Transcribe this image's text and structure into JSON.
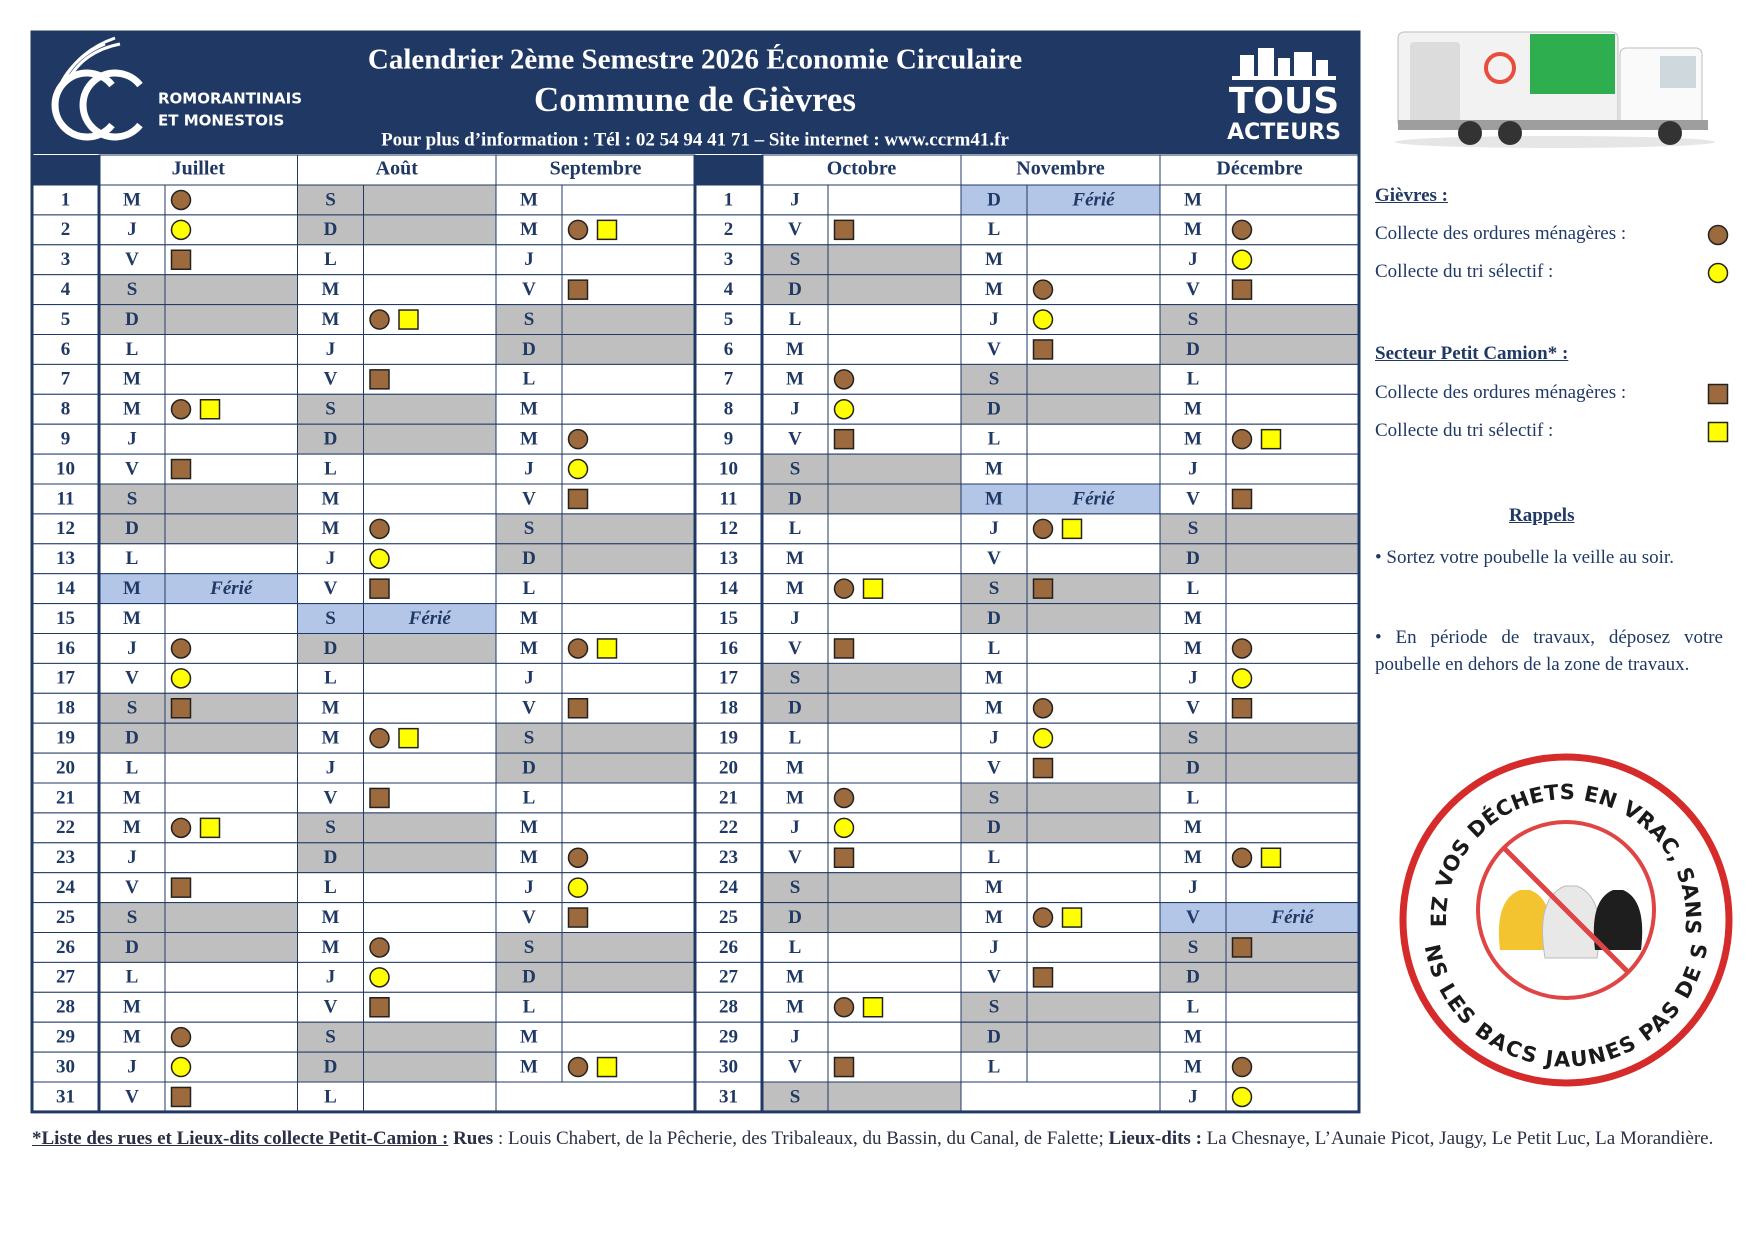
{
  "header": {
    "title": "Calendrier 2ème Semestre 2026 Économie Circulaire",
    "commune": "Commune de Gièvres",
    "info": "Pour plus d’information : Tél : 02 54 94 41 71 – Site internet : www.ccrm41.fr",
    "logo_left": [
      "ROMORANTINAIS",
      "ET MONESTOIS"
    ],
    "logo_right": [
      "TOUS",
      "ACTEURS"
    ]
  },
  "calendar": {
    "day_numbers": [
      1,
      2,
      3,
      4,
      5,
      6,
      7,
      8,
      9,
      10,
      11,
      12,
      13,
      14,
      15,
      16,
      17,
      18,
      19,
      20,
      21,
      22,
      23,
      24,
      25,
      26,
      27,
      28,
      29,
      30,
      31
    ],
    "months": [
      {
        "name": "Juillet",
        "days": [
          {
            "w": "M",
            "c": [
              "brown-circle"
            ]
          },
          {
            "w": "J",
            "c": [
              "yellow-circle"
            ]
          },
          {
            "w": "V",
            "c": [
              "brown-square"
            ]
          },
          {
            "w": "S"
          },
          {
            "w": "D"
          },
          {
            "w": "L"
          },
          {
            "w": "M"
          },
          {
            "w": "M",
            "c": [
              "brown-circle",
              "yellow-square"
            ]
          },
          {
            "w": "J"
          },
          {
            "w": "V",
            "c": [
              "brown-square"
            ]
          },
          {
            "w": "S"
          },
          {
            "w": "D"
          },
          {
            "w": "L"
          },
          {
            "w": "M",
            "note": "Férié"
          },
          {
            "w": "M"
          },
          {
            "w": "J",
            "c": [
              "brown-circle"
            ]
          },
          {
            "w": "V",
            "c": [
              "yellow-circle"
            ]
          },
          {
            "w": "S",
            "c": [
              "brown-square"
            ]
          },
          {
            "w": "D"
          },
          {
            "w": "L"
          },
          {
            "w": "M"
          },
          {
            "w": "M",
            "c": [
              "brown-circle",
              "yellow-square"
            ]
          },
          {
            "w": "J"
          },
          {
            "w": "V",
            "c": [
              "brown-square"
            ]
          },
          {
            "w": "S"
          },
          {
            "w": "D"
          },
          {
            "w": "L"
          },
          {
            "w": "M"
          },
          {
            "w": "M",
            "c": [
              "brown-circle"
            ]
          },
          {
            "w": "J",
            "c": [
              "yellow-circle"
            ]
          },
          {
            "w": "V",
            "c": [
              "brown-square"
            ]
          }
        ]
      },
      {
        "name": "Août",
        "days": [
          {
            "w": "S"
          },
          {
            "w": "D"
          },
          {
            "w": "L"
          },
          {
            "w": "M"
          },
          {
            "w": "M",
            "c": [
              "brown-circle",
              "yellow-square"
            ]
          },
          {
            "w": "J"
          },
          {
            "w": "V",
            "c": [
              "brown-square"
            ]
          },
          {
            "w": "S"
          },
          {
            "w": "D"
          },
          {
            "w": "L"
          },
          {
            "w": "M"
          },
          {
            "w": "M",
            "c": [
              "brown-circle"
            ]
          },
          {
            "w": "J",
            "c": [
              "yellow-circle"
            ]
          },
          {
            "w": "V",
            "c": [
              "brown-square"
            ]
          },
          {
            "w": "S",
            "note": "Férié"
          },
          {
            "w": "D"
          },
          {
            "w": "L"
          },
          {
            "w": "M"
          },
          {
            "w": "M",
            "c": [
              "brown-circle",
              "yellow-square"
            ]
          },
          {
            "w": "J"
          },
          {
            "w": "V",
            "c": [
              "brown-square"
            ]
          },
          {
            "w": "S"
          },
          {
            "w": "D"
          },
          {
            "w": "L"
          },
          {
            "w": "M"
          },
          {
            "w": "M",
            "c": [
              "brown-circle"
            ]
          },
          {
            "w": "J",
            "c": [
              "yellow-circle"
            ]
          },
          {
            "w": "V",
            "c": [
              "brown-square"
            ]
          },
          {
            "w": "S"
          },
          {
            "w": "D"
          },
          {
            "w": "L"
          }
        ]
      },
      {
        "name": "Septembre",
        "days": [
          {
            "w": "M"
          },
          {
            "w": "M",
            "c": [
              "brown-circle",
              "yellow-square"
            ]
          },
          {
            "w": "J"
          },
          {
            "w": "V",
            "c": [
              "brown-square"
            ]
          },
          {
            "w": "S"
          },
          {
            "w": "D"
          },
          {
            "w": "L"
          },
          {
            "w": "M"
          },
          {
            "w": "M",
            "c": [
              "brown-circle"
            ]
          },
          {
            "w": "J",
            "c": [
              "yellow-circle"
            ]
          },
          {
            "w": "V",
            "c": [
              "brown-square"
            ]
          },
          {
            "w": "S"
          },
          {
            "w": "D"
          },
          {
            "w": "L"
          },
          {
            "w": "M"
          },
          {
            "w": "M",
            "c": [
              "brown-circle",
              "yellow-square"
            ]
          },
          {
            "w": "J"
          },
          {
            "w": "V",
            "c": [
              "brown-square"
            ]
          },
          {
            "w": "S"
          },
          {
            "w": "D"
          },
          {
            "w": "L"
          },
          {
            "w": "M"
          },
          {
            "w": "M",
            "c": [
              "brown-circle"
            ]
          },
          {
            "w": "J",
            "c": [
              "yellow-circle"
            ]
          },
          {
            "w": "V",
            "c": [
              "brown-square"
            ]
          },
          {
            "w": "S"
          },
          {
            "w": "D"
          },
          {
            "w": "L"
          },
          {
            "w": "M"
          },
          {
            "w": "M",
            "c": [
              "brown-circle",
              "yellow-square"
            ]
          }
        ]
      },
      {
        "name": "Octobre",
        "days": [
          {
            "w": "J"
          },
          {
            "w": "V",
            "c": [
              "brown-square"
            ]
          },
          {
            "w": "S"
          },
          {
            "w": "D"
          },
          {
            "w": "L"
          },
          {
            "w": "M"
          },
          {
            "w": "M",
            "c": [
              "brown-circle"
            ]
          },
          {
            "w": "J",
            "c": [
              "yellow-circle"
            ]
          },
          {
            "w": "V",
            "c": [
              "brown-square"
            ]
          },
          {
            "w": "S"
          },
          {
            "w": "D"
          },
          {
            "w": "L"
          },
          {
            "w": "M"
          },
          {
            "w": "M",
            "c": [
              "brown-circle",
              "yellow-square"
            ]
          },
          {
            "w": "J"
          },
          {
            "w": "V",
            "c": [
              "brown-square"
            ]
          },
          {
            "w": "S"
          },
          {
            "w": "D"
          },
          {
            "w": "L"
          },
          {
            "w": "M"
          },
          {
            "w": "M",
            "c": [
              "brown-circle"
            ]
          },
          {
            "w": "J",
            "c": [
              "yellow-circle"
            ]
          },
          {
            "w": "V",
            "c": [
              "brown-square"
            ]
          },
          {
            "w": "S"
          },
          {
            "w": "D"
          },
          {
            "w": "L"
          },
          {
            "w": "M"
          },
          {
            "w": "M",
            "c": [
              "brown-circle",
              "yellow-square"
            ]
          },
          {
            "w": "J"
          },
          {
            "w": "V",
            "c": [
              "brown-square"
            ]
          },
          {
            "w": "S"
          }
        ]
      },
      {
        "name": "Novembre",
        "days": [
          {
            "w": "D",
            "note": "Férié"
          },
          {
            "w": "L"
          },
          {
            "w": "M"
          },
          {
            "w": "M",
            "c": [
              "brown-circle"
            ]
          },
          {
            "w": "J",
            "c": [
              "yellow-circle"
            ]
          },
          {
            "w": "V",
            "c": [
              "brown-square"
            ]
          },
          {
            "w": "S"
          },
          {
            "w": "D"
          },
          {
            "w": "L"
          },
          {
            "w": "M"
          },
          {
            "w": "M",
            "note": "Férié"
          },
          {
            "w": "J",
            "c": [
              "brown-circle",
              "yellow-square"
            ]
          },
          {
            "w": "V"
          },
          {
            "w": "S",
            "c": [
              "brown-square"
            ]
          },
          {
            "w": "D"
          },
          {
            "w": "L"
          },
          {
            "w": "M"
          },
          {
            "w": "M",
            "c": [
              "brown-circle"
            ]
          },
          {
            "w": "J",
            "c": [
              "yellow-circle"
            ]
          },
          {
            "w": "V",
            "c": [
              "brown-square"
            ]
          },
          {
            "w": "S"
          },
          {
            "w": "D"
          },
          {
            "w": "L"
          },
          {
            "w": "M"
          },
          {
            "w": "M",
            "c": [
              "brown-circle",
              "yellow-square"
            ]
          },
          {
            "w": "J"
          },
          {
            "w": "V",
            "c": [
              "brown-square"
            ]
          },
          {
            "w": "S"
          },
          {
            "w": "D"
          },
          {
            "w": "L"
          }
        ]
      },
      {
        "name": "Décembre",
        "days": [
          {
            "w": "M"
          },
          {
            "w": "M",
            "c": [
              "brown-circle"
            ]
          },
          {
            "w": "J",
            "c": [
              "yellow-circle"
            ]
          },
          {
            "w": "V",
            "c": [
              "brown-square"
            ]
          },
          {
            "w": "S"
          },
          {
            "w": "D"
          },
          {
            "w": "L"
          },
          {
            "w": "M"
          },
          {
            "w": "M",
            "c": [
              "brown-circle",
              "yellow-square"
            ]
          },
          {
            "w": "J"
          },
          {
            "w": "V",
            "c": [
              "brown-square"
            ]
          },
          {
            "w": "S"
          },
          {
            "w": "D"
          },
          {
            "w": "L"
          },
          {
            "w": "M"
          },
          {
            "w": "M",
            "c": [
              "brown-circle"
            ]
          },
          {
            "w": "J",
            "c": [
              "yellow-circle"
            ]
          },
          {
            "w": "V",
            "c": [
              "brown-square"
            ]
          },
          {
            "w": "S"
          },
          {
            "w": "D"
          },
          {
            "w": "L"
          },
          {
            "w": "M"
          },
          {
            "w": "M",
            "c": [
              "brown-circle",
              "yellow-square"
            ]
          },
          {
            "w": "J"
          },
          {
            "w": "V",
            "note": "Férié"
          },
          {
            "w": "S",
            "c": [
              "brown-square"
            ]
          },
          {
            "w": "D"
          },
          {
            "w": "L"
          },
          {
            "w": "M"
          },
          {
            "w": "M",
            "c": [
              "brown-circle"
            ]
          },
          {
            "w": "J",
            "c": [
              "yellow-circle"
            ]
          }
        ]
      }
    ]
  },
  "legend": {
    "sections": [
      {
        "title": "Gièvres :",
        "items": [
          {
            "label": "Collecte des ordures ménagères :",
            "marker": "brown-circle"
          },
          {
            "label": "Collecte du tri sélectif :",
            "marker": "yellow-circle"
          }
        ]
      },
      {
        "title": "Secteur Petit Camion* :",
        "items": [
          {
            "label": "Collecte des ordures ménagères :",
            "marker": "brown-square"
          },
          {
            "label": "Collecte du tri sélectif :",
            "marker": "yellow-square"
          }
        ]
      }
    ]
  },
  "reminders": {
    "title": "Rappels",
    "items": [
      "• Sortez votre poubelle la veille au soir.",
      "• En période de travaux, déposez votre poubelle en dehors de la zone de travaux."
    ]
  },
  "sticker": {
    "top": "DÉPOSEZ VOS DÉCHETS EN VRAC, SANS SAC !",
    "bottom": "– DANS LES BACS JAUNES PAS DE SAC –"
  },
  "footer": {
    "heading": "*Liste des rues et Lieux-dits collecte Petit-Camion :",
    "rues_label": "Rues",
    "rues": " : Louis Chabert, de la Pêcherie, des Tribaleaux, du Bassin, du Canal, de Falette;",
    "lieux_label": "Lieux-dits :",
    "lieux": " La Chesnaye, L’Aunaie Picot, Jaugy, Le Petit Luc, La Morandière."
  }
}
